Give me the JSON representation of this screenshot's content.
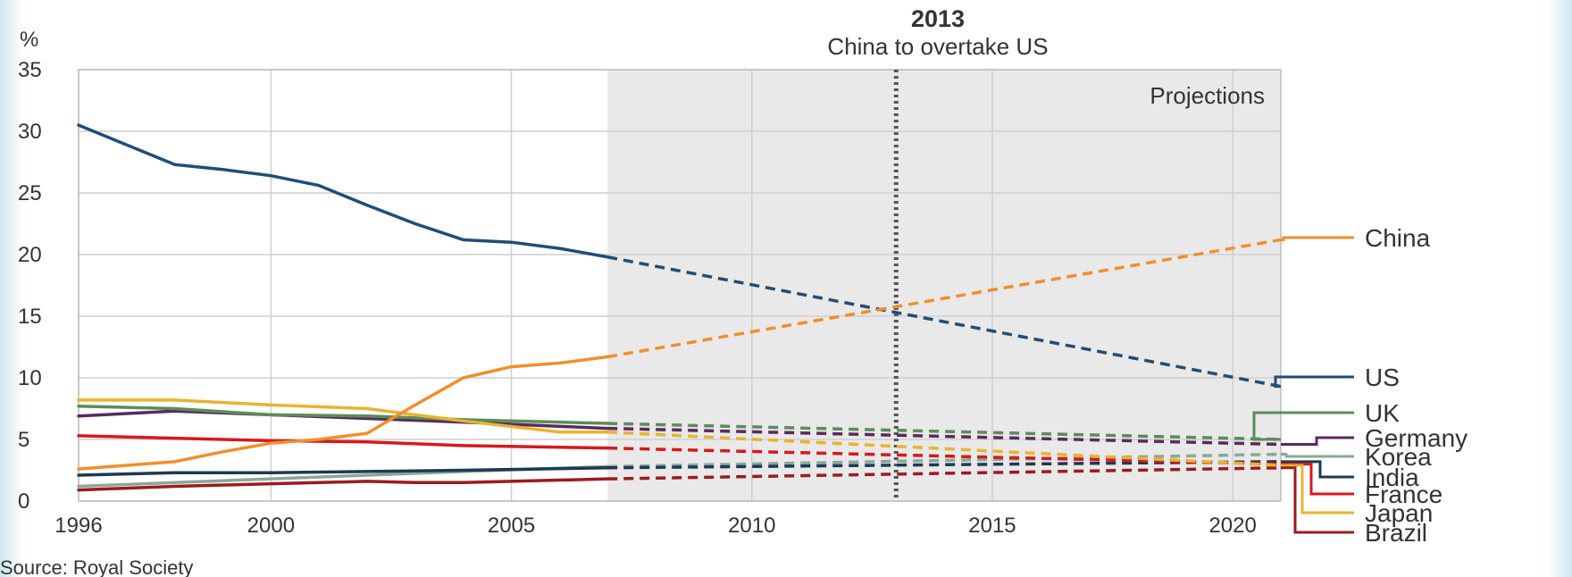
{
  "chart_data": {
    "type": "line",
    "title": "2013",
    "subtitle": "China to overtake US",
    "ylabel": "%",
    "source": "Source: Royal Society",
    "projection_label": "Projections",
    "projection_start": 2007,
    "marker_year": 2013,
    "xlim": [
      1996,
      2021
    ],
    "ylim": [
      0,
      35
    ],
    "yticks": [
      "0",
      "5",
      "10",
      "15",
      "20",
      "25",
      "30",
      "35"
    ],
    "xticks": [
      {
        "value": 1996,
        "label": "1996"
      },
      {
        "value": 2000,
        "label": "2000"
      },
      {
        "value": 2005,
        "label": "2005"
      },
      {
        "value": 2010,
        "label": "2010"
      },
      {
        "value": 2015,
        "label": "2015"
      },
      {
        "value": 2020,
        "label": "2020"
      }
    ],
    "grid": true,
    "series": [
      {
        "name": "China",
        "color": "#f28e2b",
        "actual": [
          [
            1996,
            2.6
          ],
          [
            1998,
            3.2
          ],
          [
            1999,
            4.0
          ],
          [
            2000,
            4.7
          ],
          [
            2001,
            5.0
          ],
          [
            2002,
            5.5
          ],
          [
            2003,
            7.8
          ],
          [
            2004,
            10.0
          ],
          [
            2005,
            10.9
          ],
          [
            2006,
            11.2
          ],
          [
            2007,
            11.7
          ]
        ],
        "projection": [
          [
            2007,
            11.7
          ],
          [
            2021,
            21.2
          ]
        ]
      },
      {
        "name": "US",
        "color": "#1f4e79",
        "actual": [
          [
            1996,
            30.5
          ],
          [
            1998,
            27.3
          ],
          [
            1999,
            26.9
          ],
          [
            2000,
            26.4
          ],
          [
            2001,
            25.6
          ],
          [
            2002,
            24.0
          ],
          [
            2003,
            22.5
          ],
          [
            2004,
            21.2
          ],
          [
            2005,
            21.0
          ],
          [
            2006,
            20.5
          ],
          [
            2007,
            19.8
          ]
        ],
        "projection": [
          [
            2007,
            19.8
          ],
          [
            2021,
            9.3
          ]
        ]
      },
      {
        "name": "UK",
        "color": "#5b8c5a",
        "actual": [
          [
            1996,
            7.7
          ],
          [
            1998,
            7.5
          ],
          [
            2000,
            7.0
          ],
          [
            2002,
            6.9
          ],
          [
            2004,
            6.6
          ],
          [
            2007,
            6.3
          ]
        ],
        "projection": [
          [
            2007,
            6.3
          ],
          [
            2021,
            5.0
          ]
        ]
      },
      {
        "name": "Germany",
        "color": "#5b2a5e",
        "actual": [
          [
            1996,
            6.9
          ],
          [
            1998,
            7.3
          ],
          [
            2000,
            7.0
          ],
          [
            2002,
            6.7
          ],
          [
            2004,
            6.4
          ],
          [
            2007,
            5.9
          ]
        ],
        "projection": [
          [
            2007,
            5.9
          ],
          [
            2021,
            4.6
          ]
        ]
      },
      {
        "name": "Korea",
        "color": "#8aa89a",
        "actual": [
          [
            1996,
            1.2
          ],
          [
            1998,
            1.5
          ],
          [
            2000,
            1.8
          ],
          [
            2002,
            2.1
          ],
          [
            2004,
            2.4
          ],
          [
            2007,
            2.8
          ]
        ],
        "projection": [
          [
            2007,
            2.8
          ],
          [
            2021,
            3.8
          ]
        ]
      },
      {
        "name": "India",
        "color": "#1c3a52",
        "actual": [
          [
            1996,
            2.1
          ],
          [
            1998,
            2.3
          ],
          [
            2000,
            2.3
          ],
          [
            2002,
            2.4
          ],
          [
            2004,
            2.5
          ],
          [
            2007,
            2.7
          ]
        ],
        "projection": [
          [
            2007,
            2.7
          ],
          [
            2021,
            3.2
          ]
        ]
      },
      {
        "name": "France",
        "color": "#d7191c",
        "actual": [
          [
            1996,
            5.3
          ],
          [
            1998,
            5.1
          ],
          [
            2000,
            4.9
          ],
          [
            2002,
            4.8
          ],
          [
            2004,
            4.5
          ],
          [
            2007,
            4.3
          ]
        ],
        "projection": [
          [
            2007,
            4.3
          ],
          [
            2021,
            3.0
          ]
        ]
      },
      {
        "name": "Japan",
        "color": "#e8b430",
        "actual": [
          [
            1996,
            8.2
          ],
          [
            1998,
            8.2
          ],
          [
            2000,
            7.8
          ],
          [
            2002,
            7.5
          ],
          [
            2004,
            6.5
          ],
          [
            2006,
            5.6
          ],
          [
            2007,
            5.6
          ]
        ],
        "projection": [
          [
            2007,
            5.6
          ],
          [
            2021,
            2.9
          ]
        ]
      },
      {
        "name": "Brazil",
        "color": "#9b1b1f",
        "actual": [
          [
            1996,
            0.9
          ],
          [
            1998,
            1.2
          ],
          [
            2000,
            1.4
          ],
          [
            2002,
            1.6
          ],
          [
            2003,
            1.5
          ],
          [
            2004,
            1.5
          ],
          [
            2007,
            1.8
          ]
        ],
        "projection": [
          [
            2007,
            1.8
          ],
          [
            2021,
            2.7
          ]
        ]
      }
    ]
  }
}
